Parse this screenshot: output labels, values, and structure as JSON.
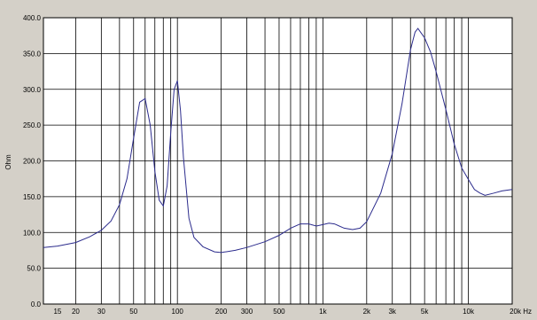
{
  "chart_data": {
    "type": "line",
    "title": "",
    "xlabel": "Hz",
    "ylabel": "Ohm",
    "x_scale": "log",
    "xlim": [
      12,
      20000
    ],
    "ylim": [
      0,
      400
    ],
    "grid": true,
    "colors": {
      "background": "#d4d0c8",
      "plot": "#ffffff",
      "grid": "#000000",
      "line": "#2b2b8c"
    },
    "y_ticks": [
      {
        "value": 0,
        "label": "0.0"
      },
      {
        "value": 50,
        "label": "50.0"
      },
      {
        "value": 100,
        "label": "100.0"
      },
      {
        "value": 150,
        "label": "150.0"
      },
      {
        "value": 200,
        "label": "200.0"
      },
      {
        "value": 250,
        "label": "250.0"
      },
      {
        "value": 300,
        "label": "300.0"
      },
      {
        "value": 350,
        "label": "350.0"
      },
      {
        "value": 400,
        "label": "400.0"
      }
    ],
    "x_ticks": [
      {
        "value": 15,
        "label": "15"
      },
      {
        "value": 20,
        "label": "20"
      },
      {
        "value": 30,
        "label": "30"
      },
      {
        "value": 50,
        "label": "50"
      },
      {
        "value": 100,
        "label": "100"
      },
      {
        "value": 200,
        "label": "200"
      },
      {
        "value": 300,
        "label": "300"
      },
      {
        "value": 500,
        "label": "500"
      },
      {
        "value": 1000,
        "label": "1k"
      },
      {
        "value": 2000,
        "label": "2k"
      },
      {
        "value": 3000,
        "label": "3k"
      },
      {
        "value": 5000,
        "label": "5k"
      },
      {
        "value": 10000,
        "label": "10k"
      },
      {
        "value": 20000,
        "label": "20k Hz"
      }
    ],
    "grid_x": [
      20,
      30,
      40,
      50,
      60,
      70,
      80,
      90,
      100,
      200,
      300,
      400,
      500,
      600,
      700,
      800,
      900,
      1000,
      2000,
      3000,
      4000,
      5000,
      6000,
      7000,
      8000,
      9000,
      10000,
      20000
    ],
    "series": [
      {
        "values_hz": [
          12,
          15,
          20,
          25,
          30,
          35,
          40,
          45,
          50,
          55,
          60,
          65,
          70,
          75,
          80,
          85,
          90,
          95,
          100,
          105,
          110,
          120,
          130,
          150,
          180,
          200,
          250,
          300,
          400,
          500,
          600,
          700,
          800,
          900,
          1000,
          1100,
          1200,
          1400,
          1600,
          1800,
          2000,
          2500,
          3000,
          3500,
          4000,
          4300,
          4500,
          5000,
          5500,
          6000,
          7000,
          8000,
          9000,
          10000,
          11000,
          12000,
          13000,
          15000,
          17000,
          20000
        ],
        "values_ohm": [
          79,
          81,
          86,
          94,
          103,
          116,
          139,
          175,
          232,
          282,
          287,
          250,
          185,
          145,
          137,
          165,
          240,
          300,
          312,
          270,
          205,
          120,
          93,
          80,
          73,
          72,
          75,
          79,
          87,
          96,
          106,
          112,
          112,
          109,
          111,
          113,
          112,
          106,
          104,
          106,
          115,
          155,
          210,
          280,
          355,
          380,
          385,
          372,
          352,
          325,
          272,
          223,
          190,
          174,
          160,
          155,
          152,
          155,
          158,
          160
        ]
      }
    ]
  }
}
